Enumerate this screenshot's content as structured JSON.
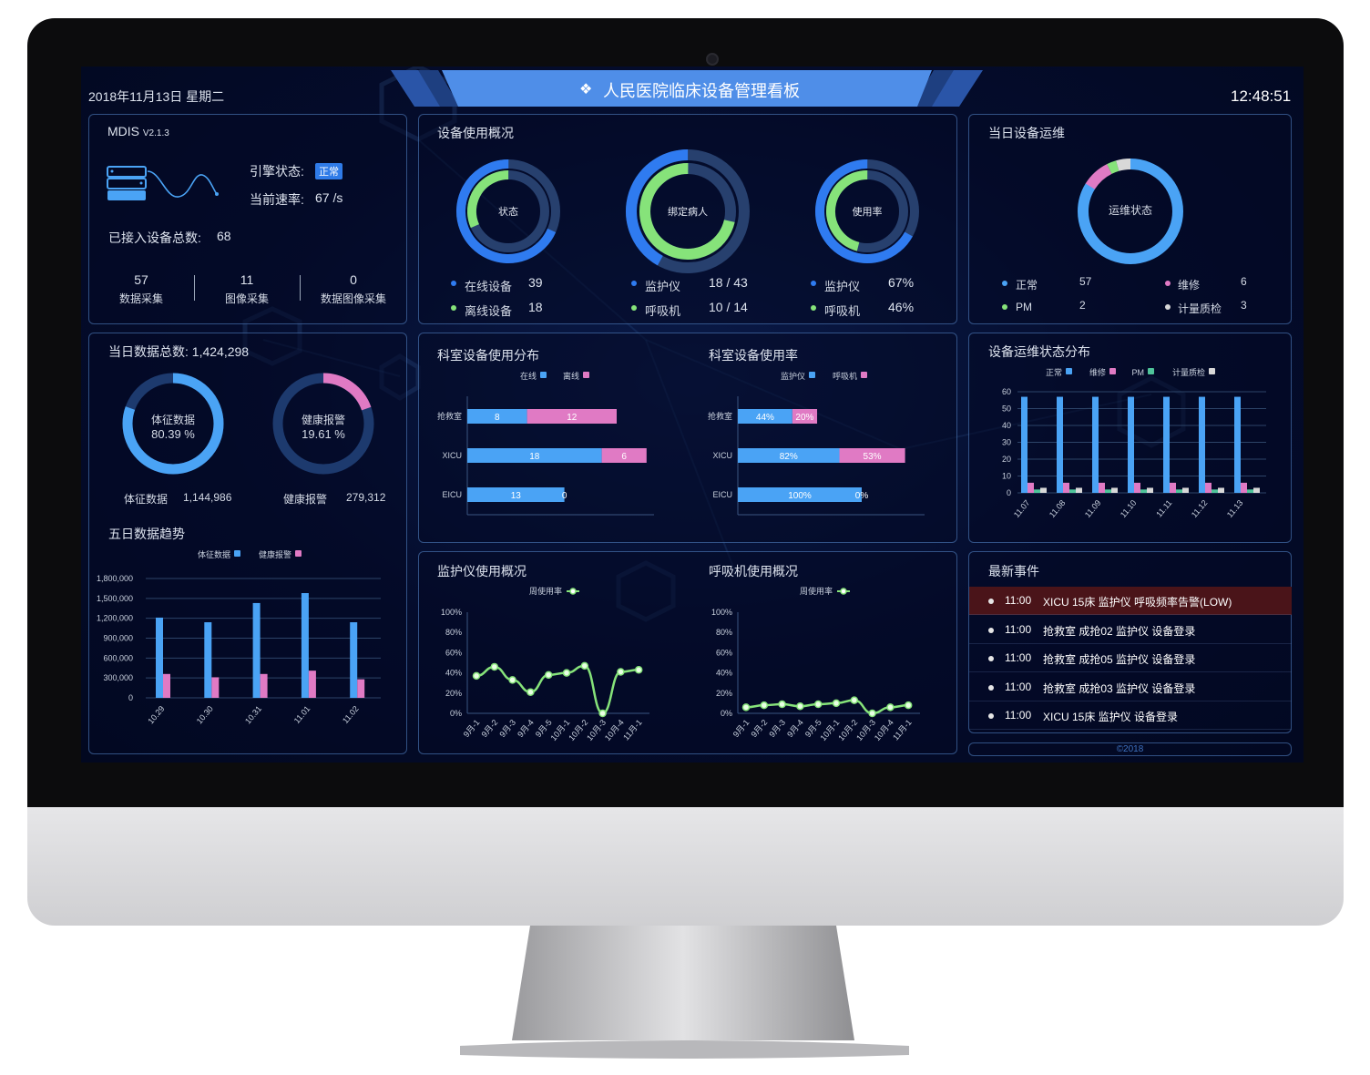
{
  "header": {
    "date": "2018年11月13日 星期二",
    "title": "人民医院临床设备管理看板",
    "time": "12:48:51"
  },
  "colors": {
    "blue": "#2f7bf0",
    "bar_blue": "#4aa3f5",
    "green": "#86e37a",
    "pink": "#e07ac4",
    "teal": "#4fc49a",
    "grey": "#d8d8d8",
    "alert_row": "#4a1419",
    "badge": "#2f7be8"
  },
  "system": {
    "name": "MDIS",
    "version": "V2.1.3",
    "engine_label": "引擎状态:",
    "engine_status": "正常",
    "rate_label": "当前速率:",
    "rate_value": "67 /s",
    "total_label": "已接入设备总数:",
    "total_value": "68",
    "stats": [
      {
        "value": "57",
        "label": "数据采集"
      },
      {
        "value": "11",
        "label": "图像采集"
      },
      {
        "value": "0",
        "label": "数据图像采集"
      }
    ]
  },
  "usage": {
    "title": "设备使用概况",
    "donuts": [
      {
        "center": "状态",
        "ring_fractions": [
          0.684,
          0.316
        ],
        "items": [
          {
            "label": "在线设备",
            "value": "39"
          },
          {
            "label": "离线设备",
            "value": "18"
          }
        ]
      },
      {
        "center": "绑定病人",
        "ring_fractions": [
          0.419,
          0.714
        ],
        "items": [
          {
            "label": "监护仪",
            "value": "18 / 43"
          },
          {
            "label": "呼吸机",
            "value": "10 / 14"
          }
        ]
      },
      {
        "center": "使用率",
        "ring_fractions": [
          0.67,
          0.46
        ],
        "items": [
          {
            "label": "监护仪",
            "value": "67%"
          },
          {
            "label": "呼吸机",
            "value": "46%"
          }
        ]
      }
    ]
  },
  "maintenance": {
    "title": "当日设备运维",
    "center": "运维状态",
    "items": [
      {
        "label": "正常",
        "value": "57",
        "count": 57
      },
      {
        "label": "维修",
        "value": "6",
        "count": 6
      },
      {
        "label": "PM",
        "value": "2",
        "count": 2
      },
      {
        "label": "计量质检",
        "value": "3",
        "count": 3
      }
    ]
  },
  "daily_data": {
    "title": "当日数据总数:",
    "total": "1,424,298",
    "donuts": [
      {
        "center": "体征数据",
        "percent_text": "80.39 %",
        "fraction": 0.8039,
        "label": "体征数据",
        "value": "1,144,986"
      },
      {
        "center": "健康报警",
        "percent_text": "19.61 %",
        "fraction": 0.1961,
        "label": "健康报警",
        "value": "279,312"
      }
    ],
    "trend_title": "五日数据趋势"
  },
  "dept_titles": {
    "distribution": "科室设备使用分布",
    "rate": "科室设备使用率"
  },
  "maint_dist_title": "设备运维状态分布",
  "line_titles": {
    "monitor": "监护仪使用概况",
    "ventilator": "呼吸机使用概况"
  },
  "events": {
    "title": "最新事件",
    "items": [
      {
        "time": "11:00",
        "text": "XICU 15床 监护仪 呼吸频率告警(LOW)",
        "alert": true
      },
      {
        "time": "11:00",
        "text": "抢救室 成抢02 监护仪 设备登录",
        "alert": false
      },
      {
        "time": "11:00",
        "text": "抢救室 成抢05 监护仪 设备登录",
        "alert": false
      },
      {
        "time": "11:00",
        "text": "抢救室 成抢03 监护仪 设备登录",
        "alert": false
      },
      {
        "time": "11:00",
        "text": "XICU 15床 监护仪 设备登录",
        "alert": false
      }
    ]
  },
  "footer": {
    "copyright": "©2018"
  },
  "chart_data": [
    {
      "type": "bar",
      "categories": [
        "10.29",
        "10.30",
        "10.31",
        "11.01",
        "11.02"
      ],
      "series": [
        {
          "name": "体征数据",
          "values": [
            1210000,
            1140000,
            1430000,
            1580000,
            1140000
          ]
        },
        {
          "name": "健康报警",
          "values": [
            360000,
            310000,
            360000,
            410000,
            280000
          ]
        }
      ],
      "yticks": [
        "0",
        "300,000",
        "600,000",
        "900,000",
        "1,200,000",
        "1,500,000",
        "1,800,000"
      ],
      "ylim": [
        0,
        1800000
      ],
      "grid": true,
      "legend": "top"
    },
    {
      "type": "bar",
      "orientation": "horizontal",
      "stacked": true,
      "categories": [
        "抢救室",
        "XICU",
        "EICU"
      ],
      "series": [
        {
          "name": "在线",
          "values": [
            8,
            18,
            13
          ],
          "labels": [
            "8",
            "18",
            "13"
          ]
        },
        {
          "name": "离线",
          "values": [
            12,
            6,
            0
          ],
          "labels": [
            "12",
            "6",
            "0"
          ]
        }
      ],
      "xlim": [
        0,
        25
      ],
      "legend": "top"
    },
    {
      "type": "bar",
      "orientation": "horizontal",
      "stacked": true,
      "categories": [
        "抢救室",
        "XICU",
        "EICU"
      ],
      "series": [
        {
          "name": "监护仪",
          "values": [
            44,
            82,
            100
          ],
          "labels": [
            "44%",
            "82%",
            "100%"
          ]
        },
        {
          "name": "呼吸机",
          "values": [
            20,
            53,
            0
          ],
          "labels": [
            "20%",
            "53%",
            "0%"
          ]
        }
      ],
      "xlim": [
        0,
        150
      ],
      "legend": "top"
    },
    {
      "type": "bar",
      "categories": [
        "11.07",
        "11.08",
        "11.09",
        "11.10",
        "11.11",
        "11.12",
        "11.13"
      ],
      "series": [
        {
          "name": "正常",
          "values": [
            57,
            57,
            57,
            57,
            57,
            57,
            57
          ]
        },
        {
          "name": "维修",
          "values": [
            6,
            6,
            6,
            6,
            6,
            6,
            6
          ]
        },
        {
          "name": "PM",
          "values": [
            2,
            2,
            2,
            2,
            2,
            2,
            2
          ]
        },
        {
          "name": "计量质检",
          "values": [
            3,
            3,
            3,
            3,
            3,
            3,
            3
          ]
        }
      ],
      "yticks": [
        "0",
        "10",
        "20",
        "30",
        "40",
        "50",
        "60"
      ],
      "ylim": [
        0,
        60
      ],
      "grid": true,
      "legend": "top"
    },
    {
      "type": "line",
      "categories": [
        "9月-1",
        "9月-2",
        "9月-3",
        "9月-4",
        "9月-5",
        "10月-1",
        "10月-2",
        "10月-3",
        "10月-4",
        "11月-1"
      ],
      "series": [
        {
          "name": "周使用率",
          "values": [
            37,
            46,
            33,
            21,
            38,
            40,
            47,
            0,
            41,
            43
          ]
        }
      ],
      "yticks": [
        "0%",
        "20%",
        "40%",
        "60%",
        "80%",
        "100%"
      ],
      "ylim": [
        0,
        100
      ],
      "legend": "top"
    },
    {
      "type": "line",
      "categories": [
        "9月-1",
        "9月-2",
        "9月-3",
        "9月-4",
        "9月-5",
        "10月-1",
        "10月-2",
        "10月-3",
        "10月-4",
        "11月-1"
      ],
      "series": [
        {
          "name": "周使用率",
          "values": [
            6,
            8,
            9,
            7,
            9,
            10,
            13,
            0,
            6,
            8
          ]
        }
      ],
      "yticks": [
        "0%",
        "20%",
        "40%",
        "60%",
        "80%",
        "100%"
      ],
      "ylim": [
        0,
        100
      ],
      "legend": "top"
    }
  ]
}
